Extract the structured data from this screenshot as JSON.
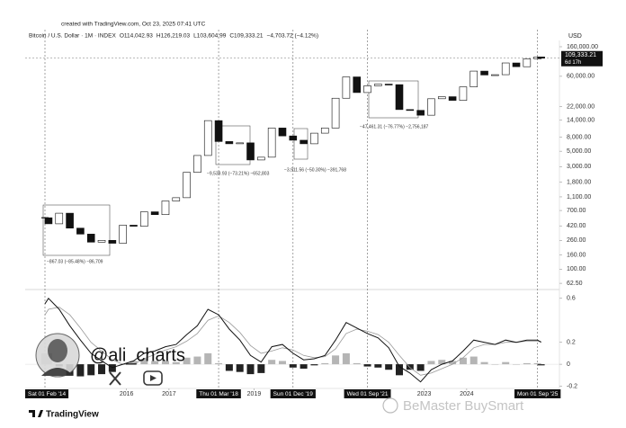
{
  "chart_data": {
    "type": "candlestick",
    "created": "created with TradingView.com, Oct 23, 2025 07:41 UTC",
    "title": "Bitcoin / U.S. Dollar · 1M · INDEX",
    "ohlc_legend": [
      "O114,042.93",
      "H126,219.03",
      "L103,604.99",
      "C109,333.21",
      "−4,703.72 (−4.12%)"
    ],
    "currency": "USD",
    "last_price_label": "109,333.21",
    "countdown": "6d 17h",
    "log_scale": true,
    "up_color": "#ffffff",
    "down_color": "#111111",
    "x": [
      "2014-02",
      "2014-03",
      "2014-06",
      "2014-09",
      "2014-12",
      "2015-03",
      "2015-06",
      "2015-09",
      "2015-12",
      "2016-03",
      "2016-06",
      "2016-09",
      "2016-12",
      "2017-03",
      "2017-06",
      "2017-09",
      "2017-12",
      "2018-03",
      "2018-06",
      "2018-09",
      "2018-12",
      "2019-03",
      "2019-06",
      "2019-09",
      "2019-12",
      "2020-03",
      "2020-06",
      "2020-09",
      "2020-12",
      "2021-03",
      "2021-06",
      "2021-09",
      "2021-12",
      "2022-03",
      "2022-06",
      "2022-09",
      "2022-12",
      "2023-03",
      "2023-06",
      "2023-09",
      "2023-12",
      "2024-03",
      "2024-06",
      "2024-09",
      "2024-12",
      "2025-03",
      "2025-06",
      "2025-09",
      "2025-10"
    ],
    "close": [
      550,
      450,
      640,
      390,
      320,
      245,
      260,
      236,
      430,
      415,
      670,
      610,
      960,
      1070,
      2480,
      4340,
      13800,
      6900,
      6400,
      6600,
      3740,
      4100,
      10800,
      8300,
      7200,
      6400,
      9100,
      10800,
      29000,
      58800,
      35000,
      43800,
      46300,
      45500,
      19900,
      19400,
      16500,
      28500,
      30500,
      27000,
      42300,
      71300,
      62700,
      63300,
      93400,
      82500,
      107100,
      114000,
      109333.21
    ],
    "ylim": [
      54,
      197000
    ],
    "yticks": [
      {
        "value": 160000,
        "label": "160,000.00"
      },
      {
        "value": 60000,
        "label": "60,000.00"
      },
      {
        "value": 22000,
        "label": "22,000.00"
      },
      {
        "value": 14000,
        "label": "14,000.00"
      },
      {
        "value": 8000,
        "label": "8,000.00"
      },
      {
        "value": 5000,
        "label": "5,000.00"
      },
      {
        "value": 3000,
        "label": "3,000.00"
      },
      {
        "value": 1800,
        "label": "1,800.00"
      },
      {
        "value": 1100,
        "label": "1,100.00"
      },
      {
        "value": 700,
        "label": "700.00"
      },
      {
        "value": 420,
        "label": "420.00"
      },
      {
        "value": 260,
        "label": "260.00"
      },
      {
        "value": 160,
        "label": "160.00"
      },
      {
        "value": 100,
        "label": "100.00"
      },
      {
        "value": 62.5,
        "label": "62.50"
      }
    ],
    "xticks": [
      {
        "value": "2016-01",
        "label": "2016"
      },
      {
        "value": "2017-01",
        "label": "2017"
      },
      {
        "value": "2019-01",
        "label": "2019"
      },
      {
        "value": "2023-01",
        "label": "2023"
      },
      {
        "value": "2024-01",
        "label": "2024"
      }
    ],
    "markers": [
      {
        "x": "2014-02",
        "label": "Sat 01 Feb '14"
      },
      {
        "x": "2018-03",
        "label": "Thu 01 Mar '18"
      },
      {
        "x": "2019-12",
        "label": "Sun 01 Dec '19"
      },
      {
        "x": "2021-09",
        "label": "Wed 01 Sep '21"
      },
      {
        "x": "2025-09",
        "label": "Mon 01 Sep '25"
      }
    ],
    "annotations": [
      "−867.03 (−85.48%) −86,709",
      "−9,539.93 (−73.21%) −652,803",
      "−3,911.56 (−50.30%) −391,768",
      "−47,461.31 (−76.77%) −2,756,187"
    ],
    "macd": {
      "macd_color": "#111111",
      "signal_color": "#999999",
      "hist_pos_color": "#b5b5b5",
      "hist_neg_color": "#222222",
      "macd": [
        0.55,
        0.6,
        0.5,
        0.35,
        0.22,
        0.1,
        0.03,
        -0.03,
        0.0,
        0.03,
        0.1,
        0.12,
        0.16,
        0.18,
        0.27,
        0.35,
        0.5,
        0.45,
        0.32,
        0.22,
        0.08,
        0.02,
        0.16,
        0.18,
        0.1,
        0.04,
        0.05,
        0.08,
        0.22,
        0.38,
        0.33,
        0.28,
        0.24,
        0.15,
        -0.02,
        -0.08,
        -0.16,
        -0.05,
        0.0,
        0.03,
        0.12,
        0.22,
        0.2,
        0.18,
        0.22,
        0.2,
        0.22,
        0.22,
        0.2
      ],
      "signal": [
        0.45,
        0.5,
        0.52,
        0.45,
        0.33,
        0.2,
        0.12,
        0.04,
        0.0,
        0.0,
        0.05,
        0.09,
        0.13,
        0.16,
        0.21,
        0.28,
        0.4,
        0.44,
        0.38,
        0.29,
        0.17,
        0.1,
        0.12,
        0.15,
        0.13,
        0.08,
        0.06,
        0.07,
        0.14,
        0.28,
        0.32,
        0.3,
        0.27,
        0.2,
        0.08,
        -0.03,
        -0.1,
        -0.08,
        -0.04,
        0.0,
        0.06,
        0.15,
        0.18,
        0.18,
        0.2,
        0.2,
        0.21,
        0.21,
        0.21
      ],
      "histogram": [
        0.1,
        0.1,
        -0.02,
        -0.1,
        -0.11,
        -0.1,
        -0.09,
        -0.07,
        0.0,
        0.03,
        0.05,
        0.03,
        0.03,
        0.02,
        0.06,
        0.07,
        0.1,
        0.01,
        -0.06,
        -0.07,
        -0.09,
        -0.08,
        0.04,
        0.03,
        -0.03,
        -0.04,
        -0.01,
        0.01,
        0.08,
        0.1,
        0.01,
        -0.02,
        -0.03,
        -0.05,
        -0.1,
        -0.05,
        -0.06,
        0.03,
        0.04,
        0.03,
        0.06,
        0.07,
        0.02,
        0.0,
        0.02,
        0.0,
        0.01,
        0.01,
        -0.01
      ],
      "ylim": [
        -0.22,
        0.68
      ],
      "yticks": [
        0.6,
        0.2,
        0,
        -0.2
      ]
    },
    "watermark": "@ali_charts",
    "brand": "TradingView",
    "stamp": "BeMaster BuySmart"
  }
}
